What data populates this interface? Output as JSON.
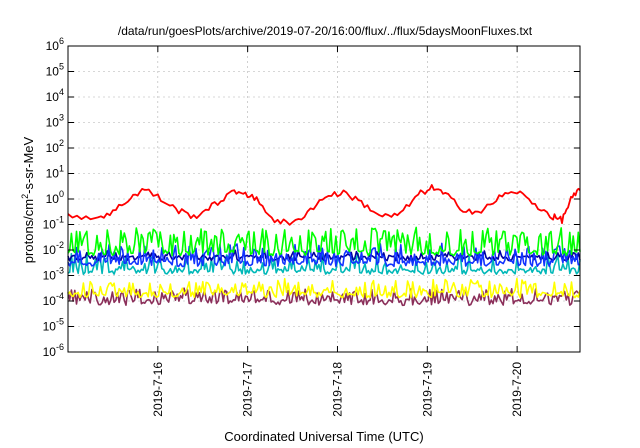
{
  "chart_data": {
    "type": "line",
    "title": "/data/run/goesPlots/archive/2019-07-20/16:00/flux/../flux/5daysMoonFluxes.txt",
    "xlabel": "Coordinated Universal Time (UTC)",
    "ylabel_parts": [
      "protons/cm",
      "2",
      "-s-sr-MeV"
    ],
    "yscale": "log",
    "ylim": [
      1e-06,
      1000000.0
    ],
    "xlim": [
      0,
      5.7
    ],
    "grid": true,
    "y_ticks": [
      {
        "base": "10",
        "exp": "-6",
        "value": 1e-06
      },
      {
        "base": "10",
        "exp": "-5",
        "value": 1e-05
      },
      {
        "base": "10",
        "exp": "-4",
        "value": 0.0001
      },
      {
        "base": "10",
        "exp": "-3",
        "value": 0.001
      },
      {
        "base": "10",
        "exp": "-2",
        "value": 0.01
      },
      {
        "base": "10",
        "exp": "-1",
        "value": 0.1
      },
      {
        "base": "10",
        "exp": "0",
        "value": 1
      },
      {
        "base": "10",
        "exp": "1",
        "value": 10
      },
      {
        "base": "10",
        "exp": "2",
        "value": 100
      },
      {
        "base": "10",
        "exp": "3",
        "value": 1000
      },
      {
        "base": "10",
        "exp": "4",
        "value": 10000
      },
      {
        "base": "10",
        "exp": "5",
        "value": 100000
      },
      {
        "base": "10",
        "exp": "6",
        "value": 1000000
      }
    ],
    "x_ticks": [
      {
        "label": "2019-7-16",
        "pos": 1
      },
      {
        "label": "2019-7-17",
        "pos": 2
      },
      {
        "label": "2019-7-18",
        "pos": 3
      },
      {
        "label": "2019-7-19",
        "pos": 4
      },
      {
        "label": "2019-7-20",
        "pos": 5
      }
    ],
    "series": [
      {
        "color": "#ff0000",
        "kind": "smooth",
        "points": [
          [
            0,
            0.25
          ],
          [
            0.3,
            0.18
          ],
          [
            0.5,
            0.3
          ],
          [
            0.7,
            1.2
          ],
          [
            0.85,
            2.5
          ],
          [
            1.0,
            1.2
          ],
          [
            1.2,
            0.4
          ],
          [
            1.4,
            0.2
          ],
          [
            1.6,
            0.5
          ],
          [
            1.8,
            1.6
          ],
          [
            1.95,
            2.0
          ],
          [
            2.1,
            0.9
          ],
          [
            2.3,
            0.15
          ],
          [
            2.5,
            0.1
          ],
          [
            2.7,
            0.4
          ],
          [
            2.9,
            1.5
          ],
          [
            3.1,
            1.7
          ],
          [
            3.3,
            0.6
          ],
          [
            3.5,
            0.2
          ],
          [
            3.7,
            0.25
          ],
          [
            3.9,
            1.5
          ],
          [
            4.05,
            2.8
          ],
          [
            4.2,
            1.5
          ],
          [
            4.4,
            0.4
          ],
          [
            4.6,
            0.3
          ],
          [
            4.8,
            1.2
          ],
          [
            5.0,
            2.0
          ],
          [
            5.2,
            0.6
          ],
          [
            5.4,
            0.2
          ],
          [
            5.5,
            0.15
          ],
          [
            5.6,
            1.0
          ],
          [
            5.7,
            2.2
          ]
        ]
      },
      {
        "color": "#00ff00",
        "kind": "spiky",
        "base": 0.008,
        "amp": 8,
        "freq": 0.55
      },
      {
        "color": "#1133ff",
        "kind": "spiky",
        "base": 0.003,
        "amp": 5,
        "freq": 0.45
      },
      {
        "color": "#0000a0",
        "kind": "flat",
        "base": 0.005,
        "amp": 1.6,
        "freq": 0.3
      },
      {
        "color": "#00b8b8",
        "kind": "spiky",
        "base": 0.0015,
        "amp": 4,
        "freq": 0.35
      },
      {
        "color": "#ffff00",
        "kind": "spiky",
        "base": 0.00018,
        "amp": 3.5,
        "freq": 0.5
      },
      {
        "color": "#8b2f5a",
        "kind": "spiky",
        "base": 9e-05,
        "amp": 3.0,
        "freq": 0.5
      }
    ]
  }
}
